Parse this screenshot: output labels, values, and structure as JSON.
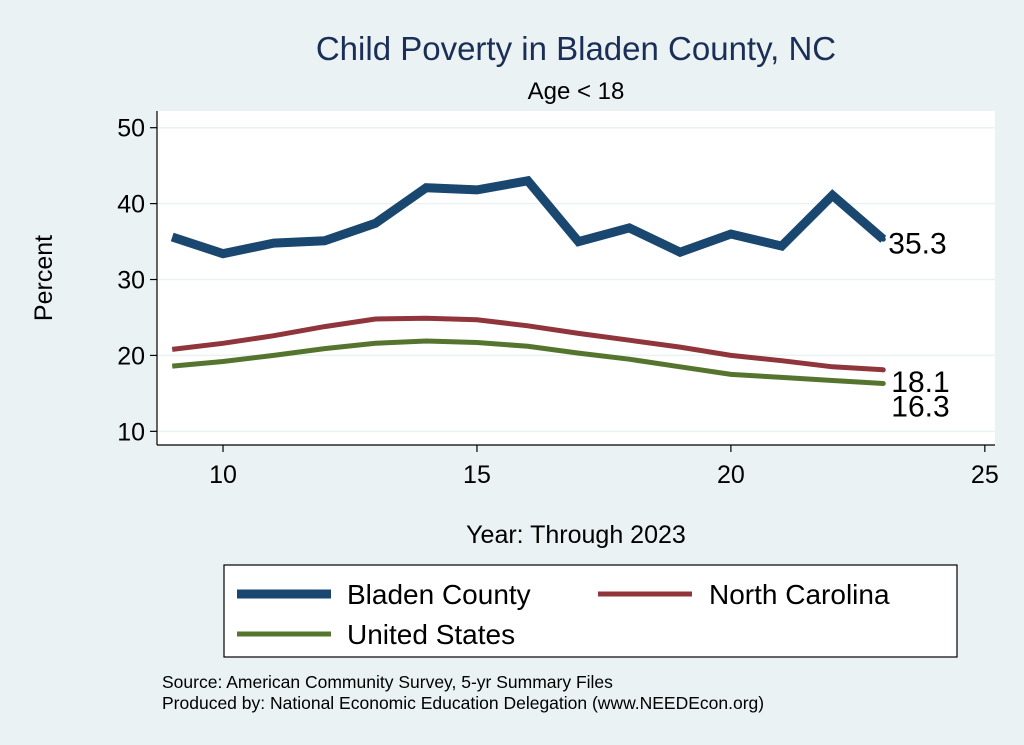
{
  "chart_data": {
    "type": "line",
    "title": "Child Poverty in Bladen County, NC",
    "subtitle": "Age < 18",
    "xlabel": "Year: Through 2023",
    "ylabel": "Percent",
    "xlim": [
      8.7,
      25.2
    ],
    "ylim": [
      8.2,
      52.2
    ],
    "xticks": [
      10,
      15,
      20,
      25
    ],
    "yticks": [
      10,
      20,
      30,
      40,
      50
    ],
    "x": [
      9,
      10,
      11,
      12,
      13,
      14,
      15,
      16,
      17,
      18,
      19,
      20,
      21,
      22,
      23
    ],
    "series": [
      {
        "name": "Bladen County",
        "color": "#1a476f",
        "values": [
          35.6,
          33.4,
          34.8,
          35.1,
          37.4,
          42.1,
          41.8,
          43.0,
          35.0,
          36.8,
          33.6,
          36.0,
          34.4,
          41.1,
          35.3
        ],
        "end_label": "35.3"
      },
      {
        "name": "North Carolina",
        "color": "#90353b",
        "values": [
          20.8,
          21.6,
          22.6,
          23.8,
          24.8,
          24.9,
          24.7,
          23.9,
          22.9,
          22.0,
          21.1,
          20.0,
          19.3,
          18.5,
          18.1
        ],
        "end_label": "18.1"
      },
      {
        "name": "United States",
        "color": "#55752f",
        "values": [
          18.6,
          19.2,
          20.0,
          20.9,
          21.6,
          21.9,
          21.7,
          21.2,
          20.3,
          19.5,
          18.5,
          17.5,
          17.1,
          16.7,
          16.3
        ],
        "end_label": "16.3"
      }
    ],
    "legend_position": "bottom",
    "notes": [
      "Source: American Community Survey, 5-yr Summary Files",
      "Produced by: National Economic Education Delegation (www.NEEDEcon.org)"
    ],
    "colors": {
      "background": "#eaf2f3",
      "plot_background": "#ffffff",
      "grid": "#eaf2f3",
      "title": "#1a2e57"
    }
  }
}
